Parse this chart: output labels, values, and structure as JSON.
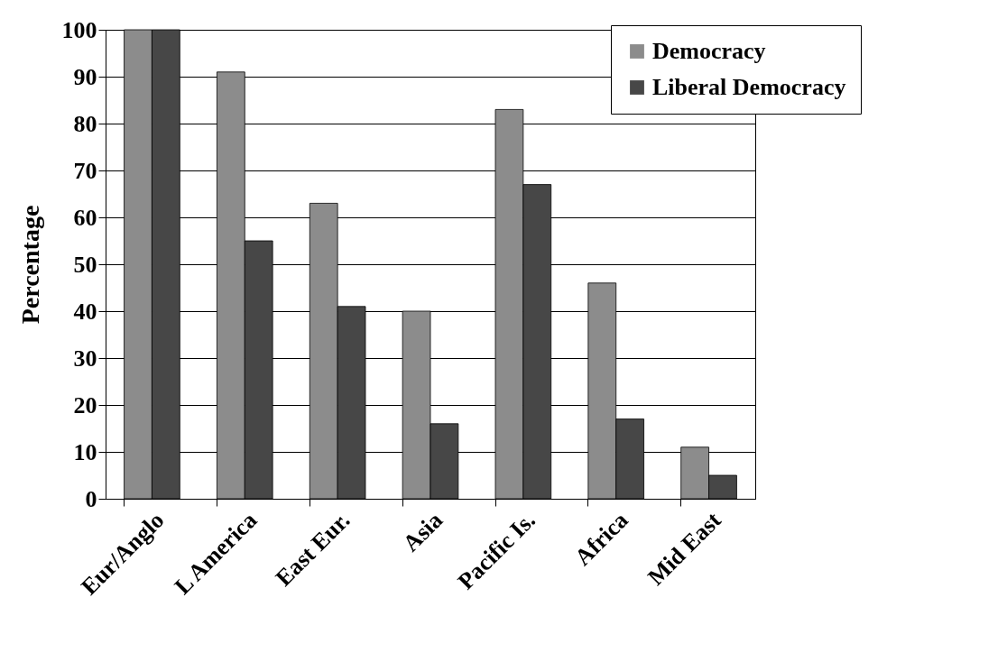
{
  "chart_data": {
    "type": "bar",
    "ylabel": "Percentage",
    "categories": [
      "Eur/Anglo",
      "L America",
      "East Eur.",
      "Asia",
      "Pacific Is.",
      "Africa",
      "Mid East"
    ],
    "series": [
      {
        "name": "Democracy",
        "color": "#8c8c8c",
        "values": [
          100,
          91,
          63,
          40,
          83,
          46,
          11
        ]
      },
      {
        "name": "Liberal Democracy",
        "color": "#474747",
        "values": [
          100,
          55,
          41,
          16,
          67,
          17,
          5
        ]
      }
    ],
    "ylim": [
      0,
      100
    ],
    "yticks": [
      0,
      10,
      20,
      30,
      40,
      50,
      60,
      70,
      80,
      90,
      100
    ],
    "grid": "y",
    "legend": "top right"
  }
}
